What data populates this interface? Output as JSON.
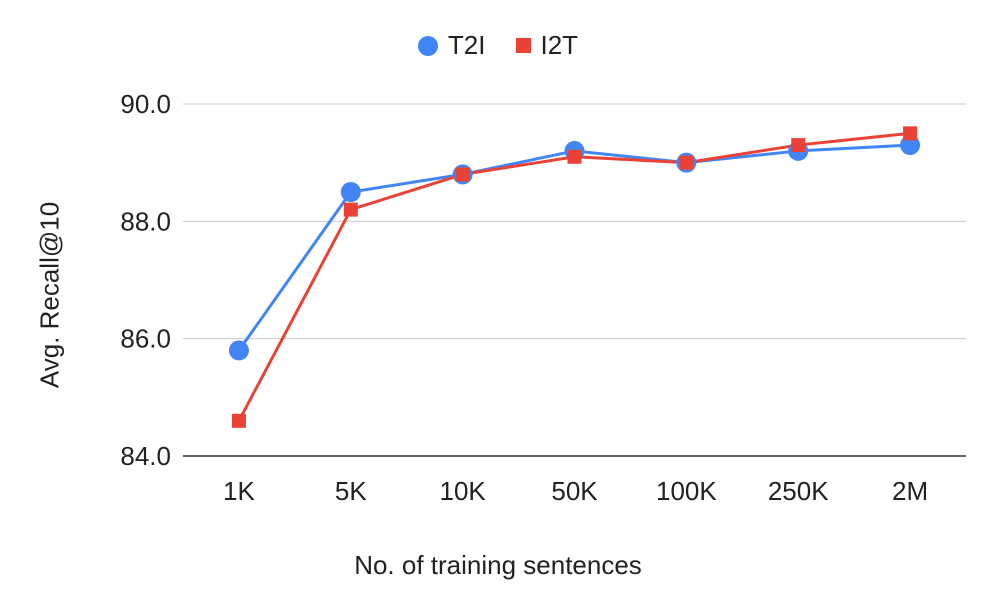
{
  "chart_data": {
    "type": "line",
    "categories": [
      "1K",
      "5K",
      "10K",
      "50K",
      "100K",
      "250K",
      "2M"
    ],
    "series": [
      {
        "name": "T2I",
        "color": "#4285f4",
        "marker": "circle",
        "values": [
          85.8,
          88.5,
          88.8,
          89.2,
          89.0,
          89.2,
          89.3
        ]
      },
      {
        "name": "I2T",
        "color": "#ea4335",
        "marker": "square",
        "values": [
          84.6,
          88.2,
          88.8,
          89.1,
          89.0,
          89.3,
          89.5
        ]
      }
    ],
    "xlabel": "No. of training sentences",
    "ylabel": "Avg. Recall@10",
    "ylim": [
      84.0,
      90.0
    ],
    "yticks": [
      "84.0",
      "86.0",
      "88.0",
      "90.0"
    ],
    "grid": true,
    "legend_position": "top-center"
  }
}
